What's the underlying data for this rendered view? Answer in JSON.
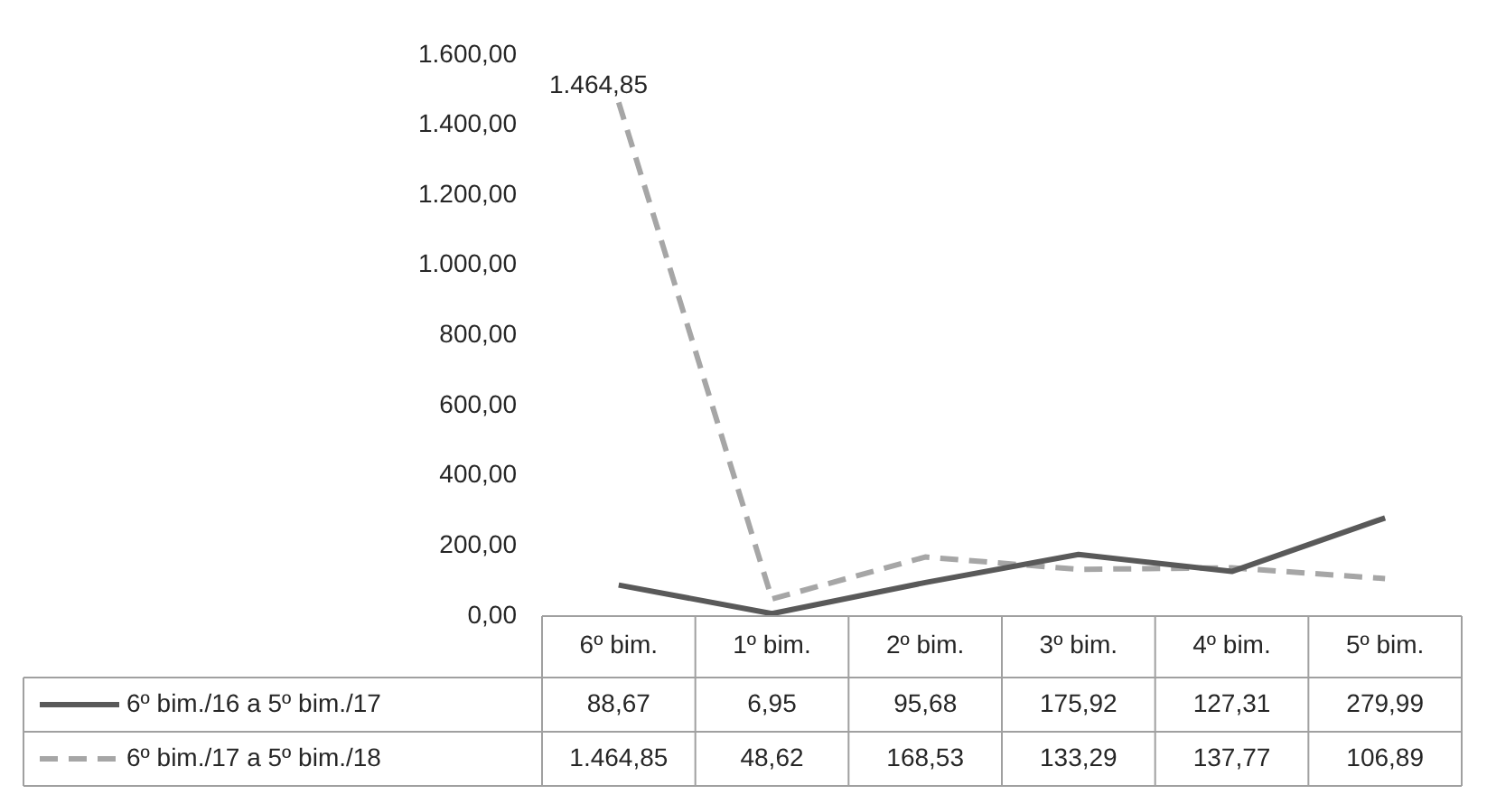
{
  "chart_data": {
    "type": "line",
    "categories": [
      "6º bim.",
      "1º bim.",
      "2º bim.",
      "3º bim.",
      "4º bim.",
      "5º bim."
    ],
    "series": [
      {
        "name": "6º bim./16 a 5º bim./17",
        "color": "#595959",
        "line_style": "solid",
        "values": [
          88.67,
          6.95,
          95.68,
          175.92,
          127.31,
          279.99
        ],
        "value_labels": [
          "88,67",
          "6,95",
          "95,68",
          "175,92",
          "127,31",
          "279,99"
        ]
      },
      {
        "name": "6º bim./17 a 5º bim./18",
        "color": "#a6a6a6",
        "line_style": "dashed",
        "values": [
          1464.85,
          48.62,
          168.53,
          133.29,
          137.77,
          106.89
        ],
        "value_labels": [
          "1.464,85",
          "48,62",
          "168,53",
          "133,29",
          "137,77",
          "106,89"
        ]
      }
    ],
    "ylim": [
      0,
      1600
    ],
    "yticks": [
      {
        "value": 0,
        "label": "0,00"
      },
      {
        "value": 200,
        "label": "200,00"
      },
      {
        "value": 400,
        "label": "400,00"
      },
      {
        "value": 600,
        "label": "600,00"
      },
      {
        "value": 800,
        "label": "800,00"
      },
      {
        "value": 1000,
        "label": "1.000,00"
      },
      {
        "value": 1200,
        "label": "1.200,00"
      },
      {
        "value": 1400,
        "label": "1.400,00"
      },
      {
        "value": 1600,
        "label": "1.600,00"
      }
    ],
    "annotations": [
      "1.464,85"
    ],
    "grid": false,
    "legend": "bottom",
    "marker": "none"
  }
}
